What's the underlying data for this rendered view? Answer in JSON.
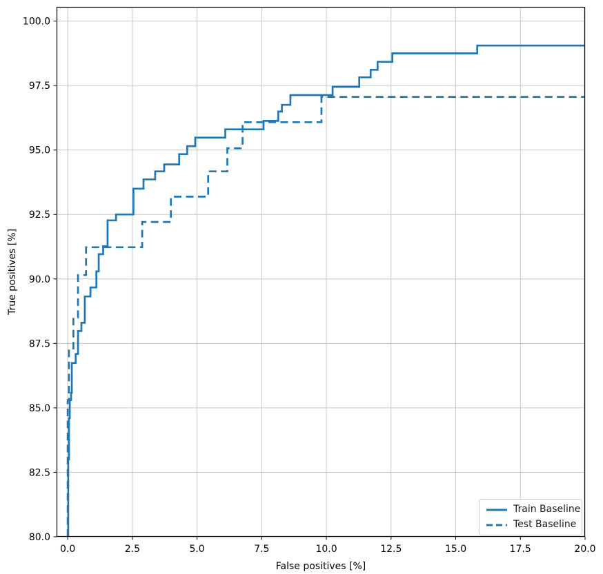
{
  "chart_data": {
    "type": "line",
    "subtype": "step-roc",
    "title": "",
    "xlabel": "False positives [%]",
    "ylabel": "True positives [%]",
    "xlim": [
      -0.43,
      20.0
    ],
    "ylim": [
      80.0,
      100.55
    ],
    "x_ticks": [
      0.0,
      2.5,
      5.0,
      7.5,
      10.0,
      12.5,
      15.0,
      17.5,
      20.0
    ],
    "x_tick_labels": [
      "0.0",
      "2.5",
      "5.0",
      "7.5",
      "10.0",
      "12.5",
      "15.0",
      "17.5",
      "20.0"
    ],
    "y_ticks": [
      80.0,
      82.5,
      85.0,
      87.5,
      90.0,
      92.5,
      95.0,
      97.5,
      100.0
    ],
    "y_tick_labels": [
      "80.0",
      "82.5",
      "85.0",
      "87.5",
      "90.0",
      "92.5",
      "95.0",
      "97.5",
      "100.0"
    ],
    "grid": true,
    "grid_color": "#c6c6c6",
    "spine_color": "#000000",
    "text_color": "#000000",
    "legend_position": "lower right",
    "series": [
      {
        "name": "Train Baseline",
        "style": "solid",
        "color": "#1f77b4",
        "points": [
          [
            0.02,
            80.0
          ],
          [
            0.02,
            83.0
          ],
          [
            0.05,
            83.0
          ],
          [
            0.05,
            84.6
          ],
          [
            0.08,
            84.6
          ],
          [
            0.08,
            85.3
          ],
          [
            0.13,
            85.3
          ],
          [
            0.13,
            85.58
          ],
          [
            0.16,
            85.58
          ],
          [
            0.16,
            86.74
          ],
          [
            0.31,
            86.74
          ],
          [
            0.31,
            87.09
          ],
          [
            0.4,
            87.09
          ],
          [
            0.4,
            87.98
          ],
          [
            0.53,
            87.98
          ],
          [
            0.53,
            88.3
          ],
          [
            0.66,
            88.3
          ],
          [
            0.66,
            89.32
          ],
          [
            0.88,
            89.32
          ],
          [
            0.88,
            89.67
          ],
          [
            1.11,
            89.67
          ],
          [
            1.11,
            90.29
          ],
          [
            1.2,
            90.29
          ],
          [
            1.2,
            90.96
          ],
          [
            1.37,
            90.96
          ],
          [
            1.37,
            91.27
          ],
          [
            1.54,
            91.27
          ],
          [
            1.54,
            92.27
          ],
          [
            1.87,
            92.27
          ],
          [
            1.87,
            92.5
          ],
          [
            2.54,
            92.5
          ],
          [
            2.54,
            93.5
          ],
          [
            2.93,
            93.5
          ],
          [
            2.93,
            93.86
          ],
          [
            3.38,
            93.86
          ],
          [
            3.38,
            94.17
          ],
          [
            3.73,
            94.17
          ],
          [
            3.73,
            94.44
          ],
          [
            4.31,
            94.44
          ],
          [
            4.31,
            94.84
          ],
          [
            4.62,
            94.84
          ],
          [
            4.62,
            95.15
          ],
          [
            4.93,
            95.15
          ],
          [
            4.93,
            95.48
          ],
          [
            6.09,
            95.48
          ],
          [
            6.09,
            95.8
          ],
          [
            7.57,
            95.8
          ],
          [
            7.57,
            96.13
          ],
          [
            8.14,
            96.13
          ],
          [
            8.14,
            96.49
          ],
          [
            8.28,
            96.49
          ],
          [
            8.28,
            96.75
          ],
          [
            8.61,
            96.75
          ],
          [
            8.61,
            97.13
          ],
          [
            10.24,
            97.13
          ],
          [
            10.24,
            97.45
          ],
          [
            11.27,
            97.45
          ],
          [
            11.27,
            97.82
          ],
          [
            11.71,
            97.82
          ],
          [
            11.71,
            98.11
          ],
          [
            11.98,
            98.11
          ],
          [
            11.98,
            98.42
          ],
          [
            12.55,
            98.42
          ],
          [
            12.55,
            98.75
          ],
          [
            15.83,
            98.75
          ],
          [
            15.83,
            99.05
          ],
          [
            20.0,
            99.05
          ]
        ]
      },
      {
        "name": "Test Baseline",
        "style": "dashed",
        "color": "#1f77b4",
        "points": [
          [
            0.0,
            80.0
          ],
          [
            0.0,
            85.3
          ],
          [
            0.05,
            85.3
          ],
          [
            0.05,
            87.3
          ],
          [
            0.22,
            87.3
          ],
          [
            0.22,
            88.5
          ],
          [
            0.4,
            88.5
          ],
          [
            0.4,
            90.15
          ],
          [
            0.71,
            90.15
          ],
          [
            0.71,
            91.23
          ],
          [
            2.88,
            91.23
          ],
          [
            2.88,
            92.21
          ],
          [
            3.99,
            92.21
          ],
          [
            3.99,
            93.19
          ],
          [
            5.43,
            93.19
          ],
          [
            5.43,
            94.17
          ],
          [
            6.17,
            94.17
          ],
          [
            6.17,
            95.07
          ],
          [
            6.76,
            95.07
          ],
          [
            6.76,
            96.08
          ],
          [
            9.81,
            96.08
          ],
          [
            9.81,
            97.06
          ],
          [
            20.0,
            97.06
          ]
        ]
      }
    ]
  }
}
